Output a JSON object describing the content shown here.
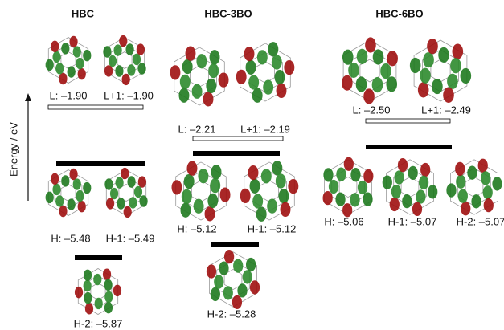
{
  "axis_label": "Energy / eV",
  "columns": [
    {
      "title": "HBC",
      "lumo": [
        "L: –1.90",
        "L+1: –1.90"
      ],
      "homo": [
        "H: –5.48",
        "H-1: –5.49"
      ],
      "homo2": [
        "H-2: –5.87"
      ]
    },
    {
      "title": "HBC-3BO",
      "lumo": [
        "L: –2.21",
        "L+1: –2.19"
      ],
      "homo": [
        "H: –5.12",
        "H-1: –5.12"
      ],
      "homo2": [
        "H-2: –5.28"
      ]
    },
    {
      "title": "HBC-6BO",
      "lumo": [
        "L: –2.50",
        "L+1: –2.49"
      ],
      "homo": [
        "H: –5.06",
        "H-1: –5.07",
        "H-2: –5.07"
      ]
    }
  ]
}
